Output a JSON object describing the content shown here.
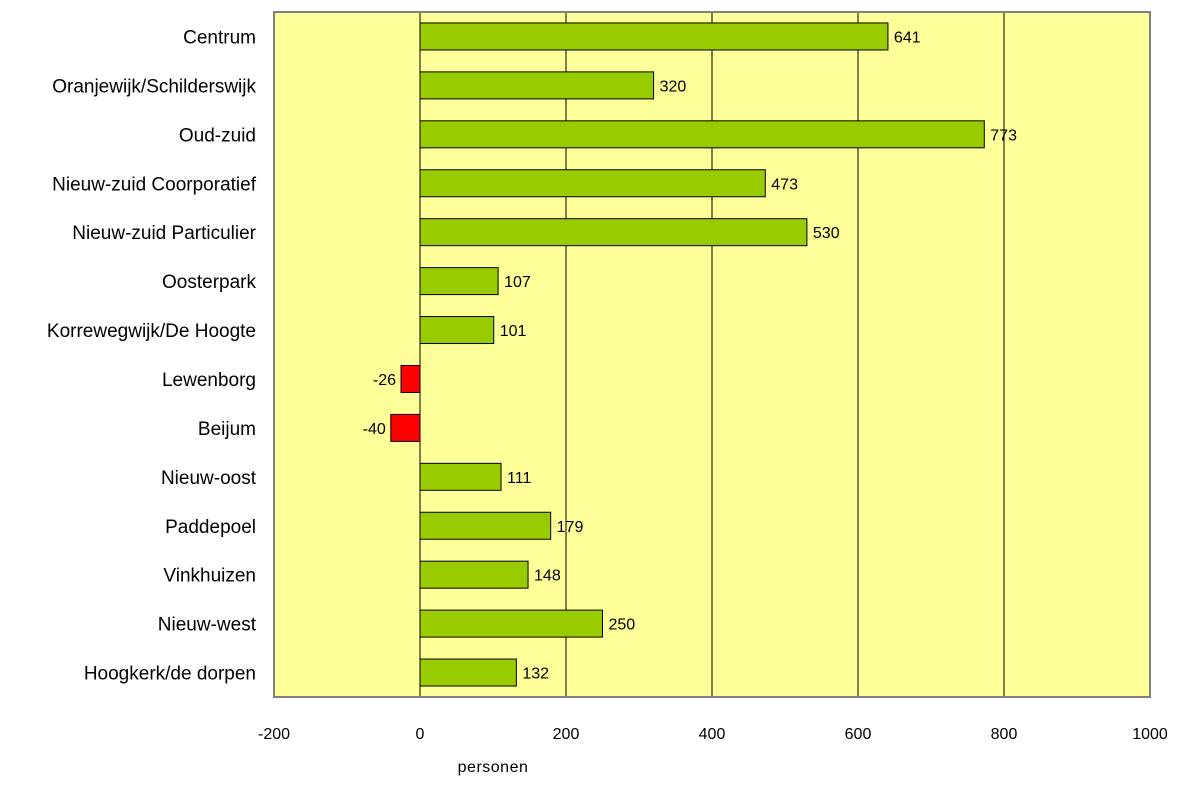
{
  "chart_data": {
    "type": "bar",
    "orientation": "horizontal",
    "categories": [
      "Centrum",
      "Oranjewijk/Schilderswijk",
      "Oud-zuid",
      "Nieuw-zuid  Coorporatief",
      "Nieuw-zuid  Particulier",
      "Oosterpark",
      "Korrewegwijk/De Hoogte",
      "Lewenborg",
      "Beijum",
      "Nieuw-oost",
      "Paddepoel",
      "Vinkhuizen",
      "Nieuw-west",
      "Hoogkerk/de dorpen"
    ],
    "values": [
      641,
      320,
      773,
      473,
      530,
      107,
      101,
      -26,
      -40,
      111,
      179,
      148,
      250,
      132
    ],
    "data_labels": [
      "641",
      "320",
      "773",
      "473",
      "530",
      "107",
      "101",
      "-26",
      "-40",
      "111",
      "179",
      "148",
      "250",
      "132"
    ],
    "xlabel": "personen",
    "ylabel": "",
    "title": "",
    "xlim": [
      -200,
      1000
    ],
    "xticks": [
      -200,
      0,
      200,
      400,
      600,
      800,
      1000
    ],
    "xtick_labels": [
      "-200",
      "0",
      "200",
      "400",
      "600",
      "800",
      "1000"
    ],
    "grid": "vertical",
    "legend": "none",
    "colors": {
      "plot_background": "#ffff99",
      "positive_bar": "#99cc00",
      "negative_bar": "#ff0000",
      "bar_outline": "#000000",
      "gridline": "#000000",
      "plot_border": "#808080"
    }
  }
}
